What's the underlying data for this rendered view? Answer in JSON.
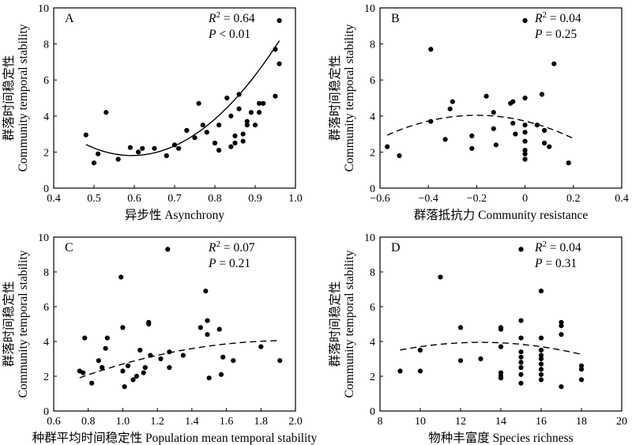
{
  "chart_data": [
    {
      "panel": "A",
      "type": "scatter",
      "xlabel": "异步性 Asynchrony",
      "ylabel_cn": "群落时间稳定性",
      "ylabel_en": "Community temporal stability",
      "xlim": [
        0.4,
        1.0
      ],
      "ylim": [
        0,
        10
      ],
      "xticks": [
        "0.4",
        "0.5",
        "0.6",
        "0.7",
        "0.8",
        "0.9",
        "1.0"
      ],
      "yticks": [
        "0",
        "2",
        "4",
        "6",
        "8",
        "10"
      ],
      "stat_r2": "0.64",
      "stat_p": "< 0.01",
      "fit": {
        "style": "solid",
        "coef": [
          47.5,
          -56.4,
          18.55
        ],
        "range": [
          0.48,
          0.96
        ]
      },
      "points": [
        [
          0.48,
          2.95
        ],
        [
          0.5,
          1.4
        ],
        [
          0.51,
          1.9
        ],
        [
          0.53,
          4.2
        ],
        [
          0.56,
          1.6
        ],
        [
          0.59,
          2.25
        ],
        [
          0.61,
          2.0
        ],
        [
          0.62,
          2.2
        ],
        [
          0.65,
          2.2
        ],
        [
          0.68,
          1.8
        ],
        [
          0.7,
          2.4
        ],
        [
          0.71,
          2.2
        ],
        [
          0.73,
          3.2
        ],
        [
          0.75,
          2.8
        ],
        [
          0.76,
          4.7
        ],
        [
          0.77,
          3.5
        ],
        [
          0.78,
          3.1
        ],
        [
          0.8,
          2.5
        ],
        [
          0.81,
          2.1
        ],
        [
          0.81,
          3.5
        ],
        [
          0.83,
          5.0
        ],
        [
          0.84,
          2.3
        ],
        [
          0.84,
          4.0
        ],
        [
          0.85,
          2.5
        ],
        [
          0.85,
          2.9
        ],
        [
          0.86,
          5.2
        ],
        [
          0.86,
          4.4
        ],
        [
          0.87,
          2.6
        ],
        [
          0.87,
          3.0
        ],
        [
          0.88,
          3.5
        ],
        [
          0.88,
          3.7
        ],
        [
          0.89,
          4.2
        ],
        [
          0.9,
          3.5
        ],
        [
          0.91,
          4.7
        ],
        [
          0.91,
          4.2
        ],
        [
          0.92,
          4.7
        ],
        [
          0.95,
          5.1
        ],
        [
          0.95,
          7.7
        ],
        [
          0.96,
          6.9
        ],
        [
          0.96,
          9.3
        ]
      ]
    },
    {
      "panel": "B",
      "type": "scatter",
      "xlabel": "群落抵抗力 Community resistance",
      "ylabel_cn": "群落时间稳定性",
      "ylabel_en": "Community temporal stability",
      "xlim": [
        -0.6,
        0.4
      ],
      "ylim": [
        0,
        10
      ],
      "xticks": [
        "−0.6",
        "−0.4",
        "−0.2",
        "0",
        "0.2",
        "0.4"
      ],
      "yticks": [
        "0",
        "2",
        "4",
        "6",
        "8",
        "10"
      ],
      "stat_r2": "0.04",
      "stat_p": "= 0.25",
      "fit": {
        "style": "dashed",
        "coef": [
          -8.05,
          -3.22,
          3.72
        ],
        "range": [
          -0.57,
          0.2
        ]
      },
      "points": [
        [
          -0.57,
          2.3
        ],
        [
          -0.52,
          1.8
        ],
        [
          -0.39,
          7.7
        ],
        [
          -0.39,
          3.7
        ],
        [
          -0.33,
          2.7
        ],
        [
          -0.31,
          4.4
        ],
        [
          -0.3,
          4.8
        ],
        [
          -0.22,
          2.9
        ],
        [
          -0.22,
          2.2
        ],
        [
          -0.16,
          5.1
        ],
        [
          -0.13,
          4.2
        ],
        [
          -0.13,
          3.3
        ],
        [
          -0.12,
          2.4
        ],
        [
          -0.06,
          4.7
        ],
        [
          -0.05,
          4.8
        ],
        [
          -0.05,
          3.6
        ],
        [
          -0.04,
          3.0
        ],
        [
          0.0,
          9.3
        ],
        [
          0.0,
          5.0
        ],
        [
          0.0,
          3.5
        ],
        [
          0.0,
          3.1
        ],
        [
          0.0,
          2.6
        ],
        [
          0.0,
          2.1
        ],
        [
          0.0,
          1.9
        ],
        [
          0.0,
          1.6
        ],
        [
          0.05,
          3.5
        ],
        [
          0.07,
          5.2
        ],
        [
          0.08,
          3.2
        ],
        [
          0.08,
          2.5
        ],
        [
          0.1,
          2.3
        ],
        [
          0.12,
          6.9
        ],
        [
          0.18,
          1.4
        ]
      ]
    },
    {
      "panel": "C",
      "type": "scatter",
      "xlabel": "种群平均时间稳定性 Population mean temporal stability",
      "ylabel_cn": "群落时间稳定性",
      "ylabel_en": "Community temporal stability",
      "xlim": [
        0.6,
        2.0
      ],
      "ylim": [
        0,
        10
      ],
      "xticks": [
        "0.6",
        "0.8",
        "1.0",
        "1.2",
        "1.4",
        "1.6",
        "1.8",
        "2.0"
      ],
      "yticks": [
        "0",
        "2",
        "4",
        "6",
        "8",
        "10"
      ],
      "stat_r2": "0.07",
      "stat_p": "= 0.21",
      "fit": {
        "style": "dashed",
        "coef": [
          -1.45,
          5.7,
          -1.55
        ],
        "range": [
          0.75,
          1.91
        ]
      },
      "points": [
        [
          0.75,
          2.3
        ],
        [
          0.77,
          2.2
        ],
        [
          0.78,
          4.2
        ],
        [
          0.82,
          1.6
        ],
        [
          0.86,
          2.9
        ],
        [
          0.88,
          2.5
        ],
        [
          0.9,
          3.6
        ],
        [
          0.91,
          4.2
        ],
        [
          0.99,
          7.7
        ],
        [
          1.0,
          4.8
        ],
        [
          1.0,
          2.3
        ],
        [
          1.01,
          1.4
        ],
        [
          1.03,
          2.6
        ],
        [
          1.06,
          1.8
        ],
        [
          1.08,
          2.0
        ],
        [
          1.1,
          3.5
        ],
        [
          1.12,
          2.2
        ],
        [
          1.13,
          2.5
        ],
        [
          1.15,
          5.1
        ],
        [
          1.15,
          5.0
        ],
        [
          1.16,
          3.2
        ],
        [
          1.22,
          3.0
        ],
        [
          1.26,
          9.3
        ],
        [
          1.27,
          3.4
        ],
        [
          1.27,
          2.5
        ],
        [
          1.35,
          3.2
        ],
        [
          1.45,
          4.8
        ],
        [
          1.48,
          6.9
        ],
        [
          1.49,
          5.2
        ],
        [
          1.49,
          4.4
        ],
        [
          1.5,
          1.9
        ],
        [
          1.56,
          4.7
        ],
        [
          1.57,
          2.1
        ],
        [
          1.58,
          3.1
        ],
        [
          1.64,
          2.9
        ],
        [
          1.8,
          3.7
        ],
        [
          1.91,
          2.9
        ]
      ]
    },
    {
      "panel": "D",
      "type": "scatter",
      "xlabel": "物种丰富度 Species richness",
      "ylabel_cn": "群落时间稳定性",
      "ylabel_en": "Community temporal stability",
      "xlim": [
        8,
        20
      ],
      "ylim": [
        0,
        10
      ],
      "xticks": [
        "8",
        "10",
        "12",
        "14",
        "16",
        "18",
        "20"
      ],
      "yticks": [
        "0",
        "2",
        "4",
        "6",
        "8",
        "10"
      ],
      "stat_r2": "0.04",
      "stat_p": "= 0.31",
      "fit": {
        "style": "dashed",
        "coef": [
          -0.0277,
          0.72,
          -0.73
        ],
        "range": [
          9,
          18
        ]
      },
      "points": [
        [
          9,
          2.3
        ],
        [
          10,
          3.5
        ],
        [
          10,
          2.3
        ],
        [
          11,
          7.7
        ],
        [
          12,
          4.8
        ],
        [
          12,
          2.9
        ],
        [
          13,
          3.0
        ],
        [
          14,
          4.8
        ],
        [
          14,
          4.7
        ],
        [
          14,
          3.7
        ],
        [
          14,
          2.2
        ],
        [
          14,
          2.0
        ],
        [
          14,
          1.9
        ],
        [
          15,
          9.3
        ],
        [
          15,
          5.2
        ],
        [
          15,
          4.2
        ],
        [
          15,
          3.4
        ],
        [
          15,
          3.1
        ],
        [
          15,
          2.8
        ],
        [
          15,
          2.5
        ],
        [
          15,
          2.1
        ],
        [
          15,
          1.6
        ],
        [
          16,
          6.9
        ],
        [
          16,
          4.2
        ],
        [
          16,
          3.5
        ],
        [
          16,
          3.2
        ],
        [
          16,
          3.0
        ],
        [
          16,
          2.7
        ],
        [
          16,
          2.4
        ],
        [
          16,
          2.1
        ],
        [
          16,
          1.8
        ],
        [
          17,
          5.1
        ],
        [
          17,
          4.9
        ],
        [
          17,
          4.4
        ],
        [
          17,
          1.4
        ],
        [
          18,
          2.6
        ],
        [
          18,
          2.4
        ],
        [
          18,
          1.8
        ]
      ]
    }
  ]
}
